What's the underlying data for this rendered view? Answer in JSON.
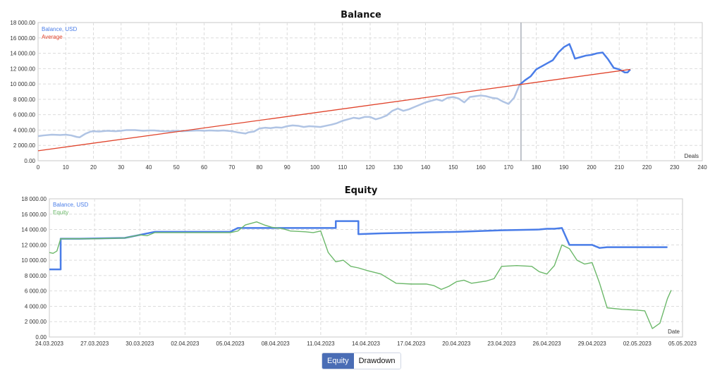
{
  "tabs": [
    {
      "label": "Equity",
      "active": true
    },
    {
      "label": "Drawdown",
      "active": false
    }
  ],
  "colors": {
    "balance": "#4a7de8",
    "balance_light": "#b0c4e4",
    "average": "#e0432b",
    "equity": "#6cb86a",
    "grid": "#dcdcdc",
    "marker": "#aab0b8"
  },
  "chart_data": [
    {
      "type": "line",
      "title": "Balance",
      "xlabel": "Deals",
      "ylabel": "",
      "xlim": [
        0,
        240
      ],
      "ylim": [
        0,
        18000
      ],
      "x_ticks": [
        "0",
        "10",
        "20",
        "30",
        "40",
        "50",
        "60",
        "70",
        "80",
        "90",
        "100",
        "110",
        "120",
        "130",
        "140",
        "150",
        "160",
        "170",
        "180",
        "190",
        "200",
        "210",
        "220",
        "230",
        "240"
      ],
      "y_ticks": [
        "0.00",
        "2 000.00",
        "4 000.00",
        "6 000.00",
        "8 000.00",
        "10 000.00",
        "12 000.00",
        "14 000.00",
        "16 000.00",
        "18 000.00"
      ],
      "grid": true,
      "legend_position": "top-left",
      "marker_x": 174.5,
      "series": [
        {
          "name": "Balance, USD",
          "x": [
            0,
            2,
            5,
            8,
            10,
            12,
            14,
            15,
            17,
            19,
            20,
            22,
            25,
            28,
            30,
            32,
            35,
            38,
            40,
            42,
            45,
            48,
            50,
            52,
            55,
            58,
            60,
            62,
            65,
            67,
            70,
            72,
            75,
            76,
            78,
            80,
            82,
            84,
            86,
            88,
            90,
            92,
            94,
            96,
            98,
            100,
            102,
            104,
            106,
            108,
            110,
            112,
            114,
            116,
            118,
            120,
            122,
            124,
            126,
            128,
            130,
            132,
            134,
            136,
            138,
            140,
            142,
            144,
            146,
            148,
            150,
            152,
            154,
            156,
            158,
            160,
            162,
            164,
            166,
            168,
            170,
            172,
            174,
            176,
            178,
            180,
            182,
            184,
            186,
            188,
            190,
            192,
            193,
            194,
            196,
            198,
            200,
            202,
            204,
            206,
            208,
            210,
            212,
            213,
            214
          ],
          "y": [
            3200,
            3300,
            3400,
            3350,
            3400,
            3300,
            3100,
            3050,
            3500,
            3800,
            3850,
            3800,
            3900,
            3850,
            3900,
            4000,
            4000,
            3900,
            3950,
            3950,
            3850,
            3850,
            3900,
            3850,
            3900,
            3950,
            3900,
            3950,
            3900,
            3950,
            3850,
            3700,
            3550,
            3700,
            3800,
            4200,
            4300,
            4250,
            4350,
            4300,
            4500,
            4600,
            4550,
            4400,
            4500,
            4450,
            4400,
            4550,
            4700,
            4900,
            5200,
            5400,
            5600,
            5500,
            5700,
            5700,
            5400,
            5600,
            5900,
            6500,
            6800,
            6500,
            6700,
            7000,
            7300,
            7600,
            7800,
            8000,
            7800,
            8200,
            8300,
            8100,
            7600,
            8300,
            8400,
            8500,
            8400,
            8200,
            8100,
            7700,
            7400,
            8200,
            9900,
            10500,
            11000,
            11900,
            12300,
            12700,
            13100,
            14100,
            14800,
            15200,
            14300,
            13300,
            13500,
            13700,
            13800,
            14000,
            14100,
            13200,
            12100,
            11900,
            11500,
            11500,
            11900
          ]
        },
        {
          "name": "Average",
          "x": [
            0,
            214
          ],
          "y": [
            1300,
            11900
          ]
        }
      ]
    },
    {
      "type": "line",
      "title": "Equity",
      "xlabel": "Date",
      "ylabel": "",
      "xlim": [
        "24.03.2023",
        "05.05.2023"
      ],
      "ylim": [
        0,
        18000
      ],
      "x_ticks": [
        "24.03.2023",
        "27.03.2023",
        "30.03.2023",
        "02.04.2023",
        "05.04.2023",
        "08.04.2023",
        "11.04.2023",
        "14.04.2023",
        "17.04.2023",
        "20.04.2023",
        "23.04.2023",
        "26.04.2023",
        "29.04.2023",
        "02.05.2023",
        "05.05.2023"
      ],
      "y_ticks": [
        "0.00",
        "2 000.00",
        "4 000.00",
        "6 000.00",
        "8 000.00",
        "10 000.00",
        "12 000.00",
        "14 000.00",
        "16 000.00",
        "18 000.00"
      ],
      "grid": true,
      "legend_position": "top-left",
      "series": [
        {
          "name": "Balance, USD",
          "x": [
            "24.03.2023 00:00",
            "24.03.2023 18:00",
            "24.03.2023 18:00",
            "26.03.2023 00:00",
            "26.03.2023 00:00",
            "29.03.2023 00:00",
            "30.03.2023 00:00",
            "31.03.2023 00:00",
            "05.04.2023 00:00",
            "05.04.2023 12:00",
            "06.04.2023 00:00",
            "07.04.2023 12:00",
            "12.04.2023 00:00",
            "12.04.2023 00:00",
            "13.04.2023 12:00",
            "13.04.2023 12:00",
            "15.04.2023 00:00",
            "17.04.2023 12:00",
            "20.04.2023 00:00",
            "23.04.2023 00:00",
            "25.04.2023 12:00",
            "26.04.2023 00:00",
            "26.04.2023 12:00",
            "27.04.2023 00:00",
            "27.04.2023 12:00",
            "29.04.2023 00:00",
            "29.04.2023 12:00",
            "30.04.2023 00:00",
            "04.05.2023 00:00"
          ],
          "y": [
            8800,
            8800,
            12800,
            12800,
            12800,
            12900,
            13300,
            13700,
            13700,
            14200,
            14200,
            14200,
            14200,
            15100,
            15100,
            13400,
            13500,
            13600,
            13700,
            13900,
            14000,
            14100,
            14100,
            14200,
            12000,
            12000,
            11600,
            11700,
            11700
          ]
        },
        {
          "name": "Equity",
          "x": [
            "24.03.2023 00:00",
            "24.03.2023 06:00",
            "24.03.2023 12:00",
            "24.03.2023 18:00",
            "25.03.2023 00:00",
            "26.03.2023 00:00",
            "27.03.2023 00:00",
            "29.03.2023 00:00",
            "30.03.2023 00:00",
            "30.03.2023 12:00",
            "31.03.2023 00:00",
            "02.04.2023 00:00",
            "05.04.2023 00:00",
            "05.04.2023 12:00",
            "06.04.2023 00:00",
            "06.04.2023 18:00",
            "07.04.2023 06:00",
            "07.04.2023 18:00",
            "08.04.2023 12:00",
            "09.04.2023 00:00",
            "10.04.2023 00:00",
            "10.04.2023 12:00",
            "11.04.2023 00:00",
            "11.04.2023 12:00",
            "12.04.2023 00:00",
            "12.04.2023 12:00",
            "13.04.2023 00:00",
            "13.04.2023 12:00",
            "14.04.2023 00:00",
            "15.04.2023 00:00",
            "16.04.2023 00:00",
            "17.04.2023 00:00",
            "18.04.2023 00:00",
            "18.04.2023 12:00",
            "19.04.2023 00:00",
            "19.04.2023 12:00",
            "20.04.2023 00:00",
            "20.04.2023 12:00",
            "21.04.2023 00:00",
            "22.04.2023 00:00",
            "22.04.2023 12:00",
            "23.04.2023 00:00",
            "24.04.2023 00:00",
            "25.04.2023 00:00",
            "25.04.2023 12:00",
            "26.04.2023 00:00",
            "26.04.2023 12:00",
            "27.04.2023 00:00",
            "27.04.2023 12:00",
            "28.04.2023 00:00",
            "28.04.2023 12:00",
            "29.04.2023 00:00",
            "29.04.2023 12:00",
            "30.04.2023 00:00",
            "01.05.2023 00:00",
            "02.05.2023 00:00",
            "02.05.2023 12:00",
            "03.05.2023 00:00",
            "03.05.2023 12:00",
            "04.05.2023 00:00",
            "04.05.2023 06:00"
          ],
          "y": [
            11000,
            10900,
            11200,
            12800,
            12800,
            12800,
            12800,
            12900,
            13300,
            13200,
            13600,
            13600,
            13600,
            13800,
            14600,
            15000,
            14600,
            14300,
            14100,
            13800,
            13700,
            13600,
            13800,
            11000,
            9800,
            10000,
            9200,
            9000,
            8700,
            8200,
            7000,
            6900,
            6900,
            6700,
            6200,
            6600,
            7200,
            7400,
            7000,
            7300,
            7600,
            9200,
            9300,
            9200,
            8500,
            8200,
            9300,
            12000,
            11500,
            10000,
            9500,
            9700,
            7000,
            3800,
            3600,
            3500,
            3400,
            1100,
            1800,
            5000,
            6100
          ]
        }
      ]
    }
  ]
}
